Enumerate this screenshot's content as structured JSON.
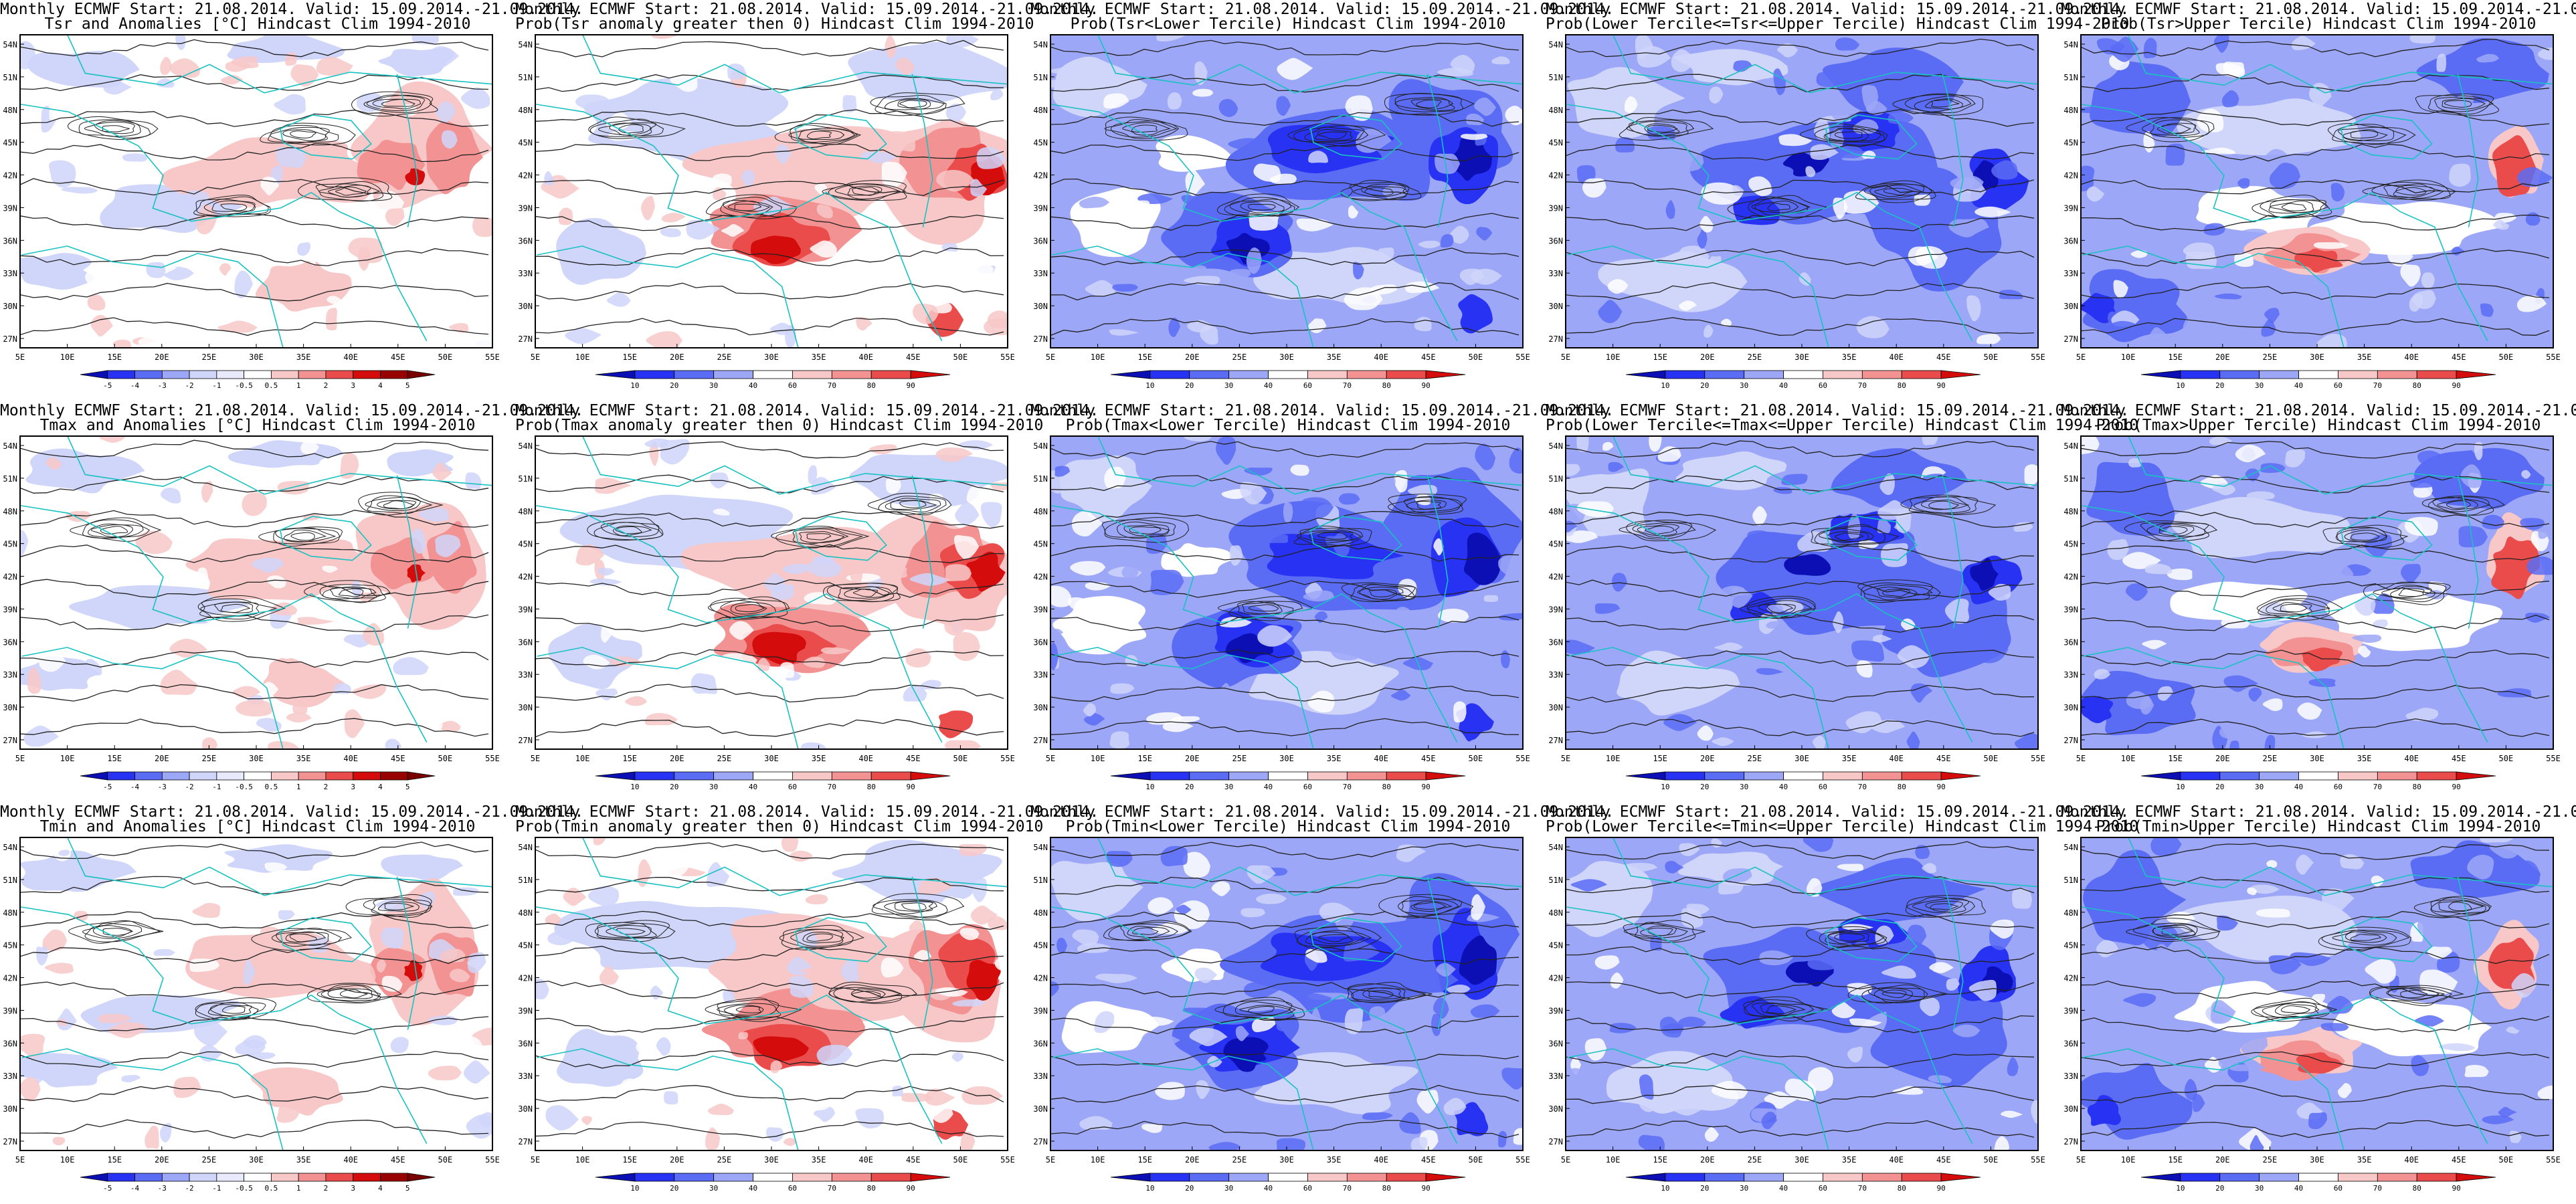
{
  "header": {
    "line1": "Monthly ECMWF Start: 21.08.2014. Valid: 15.09.2014.-21.09.2014."
  },
  "axes": {
    "lat_labels": [
      "54N",
      "51N",
      "48N",
      "45N",
      "42N",
      "39N",
      "36N",
      "33N",
      "30N",
      "27N"
    ],
    "lon_labels": [
      "5E",
      "10E",
      "15E",
      "20E",
      "25E",
      "30E",
      "35E",
      "40E",
      "45E",
      "50E",
      "55E"
    ]
  },
  "colorbars": {
    "anomaly": [
      "-5",
      "-4",
      "-3",
      "-2",
      "-1",
      "-0.5",
      "0.5",
      "1",
      "2",
      "3",
      "4",
      "5"
    ],
    "probability": [
      "10",
      "20",
      "30",
      "40",
      "60",
      "70",
      "80",
      "90"
    ]
  },
  "colors": {
    "deep_blue": "#0b0fb4",
    "blue": "#2732f2",
    "mid_blue": "#5a6cf4",
    "light_blue": "#9da7f7",
    "pale_blue": "#d0d5fa",
    "pale_red": "#f8c8c8",
    "light_red": "#f29292",
    "red": "#ea4b4b",
    "deep_red": "#d40c0c",
    "dark_red": "#990000",
    "coast": "#19c2c2",
    "contour": "#222222"
  },
  "panels": [
    {
      "row": 0,
      "col": 0,
      "kind": "anomaly",
      "subtitle": "Tsr and Anomalies [°C] Hindcast Clim 1994-2010"
    },
    {
      "row": 0,
      "col": 1,
      "kind": "prob_warm",
      "subtitle": "Prob(Tsr anomaly greater then 0) Hindcast Clim 1994-2010"
    },
    {
      "row": 0,
      "col": 2,
      "kind": "prob_lower",
      "subtitle": "Prob(Tsr<Lower Tercile) Hindcast Clim 1994-2010"
    },
    {
      "row": 0,
      "col": 3,
      "kind": "prob_middle",
      "subtitle": "Prob(Lower Tercile<=Tsr<=Upper Tercile) Hindcast Clim 1994-2010"
    },
    {
      "row": 0,
      "col": 4,
      "kind": "prob_upper",
      "subtitle": "Prob(Tsr>Upper Tercile) Hindcast Clim 1994-2010"
    },
    {
      "row": 1,
      "col": 0,
      "kind": "anomaly",
      "subtitle": "Tmax and Anomalies [°C] Hindcast Clim 1994-2010"
    },
    {
      "row": 1,
      "col": 1,
      "kind": "prob_warm",
      "subtitle": "Prob(Tmax anomaly greater then 0) Hindcast Clim 1994-2010"
    },
    {
      "row": 1,
      "col": 2,
      "kind": "prob_lower",
      "subtitle": "Prob(Tmax<Lower Tercile) Hindcast Clim 1994-2010"
    },
    {
      "row": 1,
      "col": 3,
      "kind": "prob_middle",
      "subtitle": "Prob(Lower Tercile<=Tmax<=Upper Tercile) Hindcast Clim 1994-2010"
    },
    {
      "row": 1,
      "col": 4,
      "kind": "prob_upper",
      "subtitle": "Prob(Tmax>Upper Tercile) Hindcast Clim 1994-2010"
    },
    {
      "row": 2,
      "col": 0,
      "kind": "anomaly",
      "subtitle": "Tmin and Anomalies [°C] Hindcast Clim 1994-2010"
    },
    {
      "row": 2,
      "col": 1,
      "kind": "prob_warm",
      "subtitle": "Prob(Tmin anomaly greater then 0) Hindcast Clim 1994-2010"
    },
    {
      "row": 2,
      "col": 2,
      "kind": "prob_lower",
      "subtitle": "Prob(Tmin<Lower Tercile) Hindcast Clim 1994-2010"
    },
    {
      "row": 2,
      "col": 3,
      "kind": "prob_middle",
      "subtitle": "Prob(Lower Tercile<=Tmin<=Upper Tercile) Hindcast Clim 1994-2010"
    },
    {
      "row": 2,
      "col": 4,
      "kind": "prob_upper",
      "subtitle": "Prob(Tmin>Upper Tercile) Hindcast Clim 1994-2010"
    }
  ]
}
